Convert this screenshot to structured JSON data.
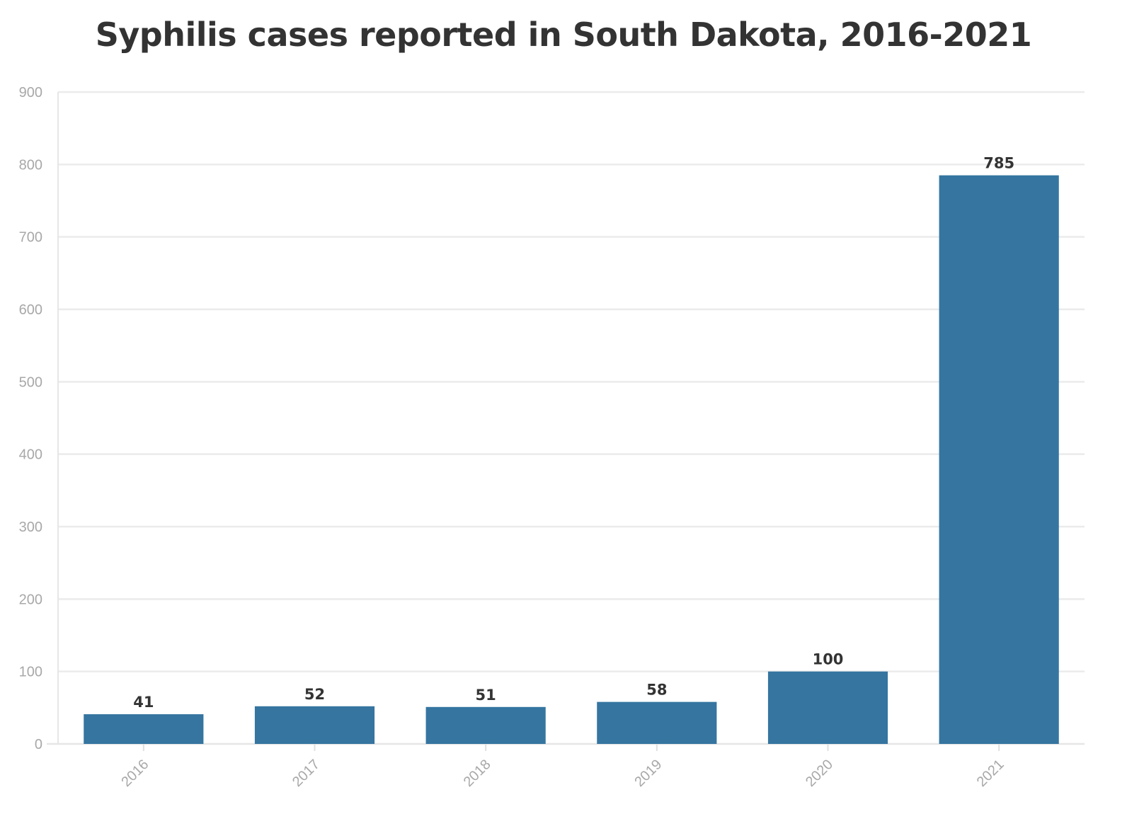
{
  "chart_data": {
    "type": "bar",
    "title": "Syphilis cases reported in South Dakota, 2016-2021",
    "xlabel": "",
    "ylabel": "",
    "categories": [
      "2016",
      "2017",
      "2018",
      "2019",
      "2020",
      "2021"
    ],
    "values": [
      41,
      52,
      51,
      58,
      100,
      785
    ],
    "ylim": [
      0,
      900
    ],
    "yticks": [
      0,
      100,
      200,
      300,
      400,
      500,
      600,
      700,
      800,
      900
    ],
    "grid": true,
    "legend": "none",
    "bar_color": "#3575a0",
    "grid_color": "#ebebeb",
    "tick_label_color": "#a8a8a8",
    "data_label_color": "#333333"
  }
}
